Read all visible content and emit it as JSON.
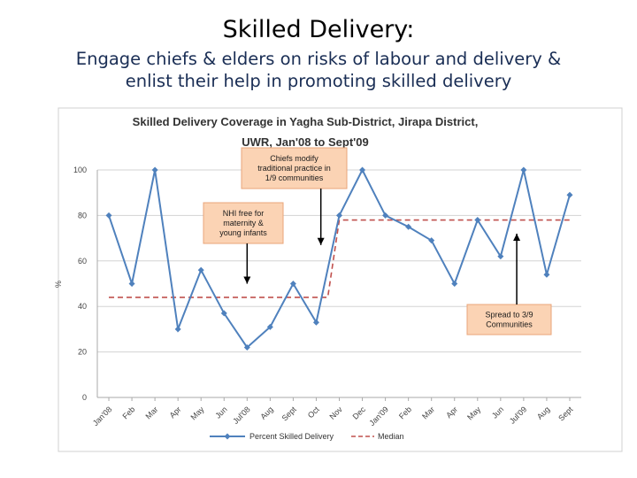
{
  "slide": {
    "title": "Skilled Delivery:",
    "subtitle_line1": "Engage chiefs & elders on risks of labour and delivery &",
    "subtitle_line2": "enlist their help in promoting skilled delivery"
  },
  "chart_data": {
    "type": "line",
    "title_line1": "Skilled Delivery Coverage in Yagha Sub-District, Jirapa District,",
    "title_line2": "UWR, Jan'08 to Sept'09",
    "ylabel": "%",
    "ylim": [
      0,
      100
    ],
    "yticks": [
      "0",
      "20",
      "40",
      "60",
      "80",
      "100"
    ],
    "grid": true,
    "legend_position": "bottom",
    "categories": [
      "Jan'08",
      "Feb",
      "Mar",
      "Apr",
      "May",
      "Jun",
      "Jul'08",
      "Aug",
      "Sept",
      "Oct",
      "Nov",
      "Dec",
      "Jan'09",
      "Feb",
      "Mar",
      "Apr",
      "May",
      "Jun",
      "Jul'09",
      "Aug",
      "Sept"
    ],
    "series": [
      {
        "name": "Percent Skilled Delivery",
        "color": "#4f81bd",
        "values": [
          80,
          50,
          100,
          30,
          56,
          37,
          22,
          31,
          50,
          33,
          80,
          100,
          80,
          75,
          69,
          50,
          78,
          62,
          100,
          54,
          89
        ]
      },
      {
        "name": "Median",
        "color": "#c0504d",
        "style": "dashed",
        "values": [
          44,
          44,
          44,
          44,
          44,
          44,
          44,
          44,
          44,
          44,
          78,
          78,
          78,
          78,
          78,
          78,
          78,
          78,
          78,
          78,
          78
        ]
      }
    ],
    "annotations": [
      {
        "lines": [
          "NHI free for",
          "maternity &",
          "young infants"
        ],
        "category_index": 6,
        "arrow_to": 50
      },
      {
        "lines": [
          "Chiefs modify",
          "traditional practice in",
          "1/9 communities"
        ],
        "category_index": 9.2,
        "arrow_to": 67
      },
      {
        "lines": [
          "Spread to 3/9",
          "Communities"
        ],
        "category_index": 17.7,
        "arrow_to": 72
      }
    ]
  }
}
